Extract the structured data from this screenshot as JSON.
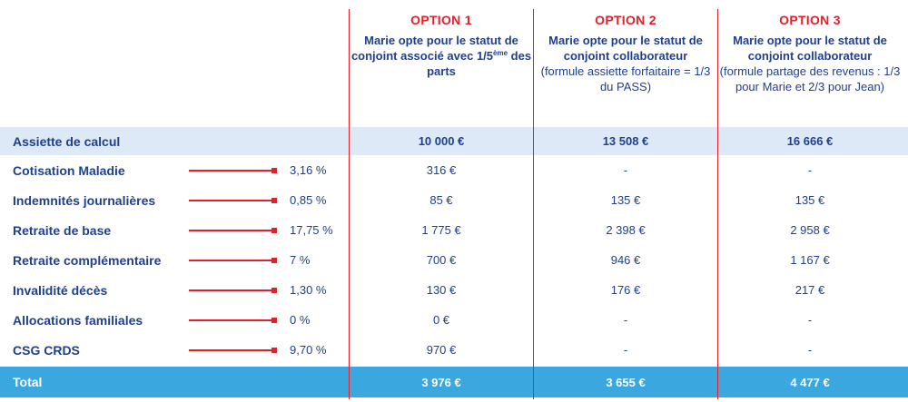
{
  "options": [
    {
      "title": "OPTION 1",
      "desc_before_sup": "Marie opte pour le statut de conjoint associé avec 1/5",
      "sup": "ème",
      "desc_after_sup": " des parts",
      "note": ""
    },
    {
      "title": "OPTION 2",
      "desc": "Marie opte pour le statut de conjoint collaborateur",
      "note": "(formule assiette forfaitaire = 1/3 du PASS)"
    },
    {
      "title": "OPTION 3",
      "desc": "Marie opte pour le statut de conjoint collaborateur",
      "note": "(formule partage des revenus : 1/3 pour Marie et 2/3 pour Jean)"
    }
  ],
  "assiette": {
    "label": "Assiette de calcul",
    "values": [
      "10 000 €",
      "13 508 €",
      "16 666 €"
    ]
  },
  "rows": [
    {
      "label": "Cotisation Maladie",
      "rate": "3,16 %",
      "values": [
        "316 €",
        "-",
        "-"
      ]
    },
    {
      "label": "Indemnités journalières",
      "rate": "0,85 %",
      "values": [
        "85 €",
        "135 €",
        "135 €"
      ]
    },
    {
      "label": "Retraite de base",
      "rate": "17,75 %",
      "values": [
        "1 775 €",
        "2 398 €",
        "2 958 €"
      ]
    },
    {
      "label": "Retraite complémentaire",
      "rate": "7 %",
      "values": [
        "700 €",
        "946 €",
        "1 167 €"
      ]
    },
    {
      "label": "Invalidité décès",
      "rate": "1,30 %",
      "values": [
        "130 €",
        "176 €",
        "217 €"
      ]
    },
    {
      "label": "Allocations familiales",
      "rate": "0 %",
      "values": [
        "0 €",
        "-",
        "-"
      ]
    },
    {
      "label": "CSG CRDS",
      "rate": "9,70 %",
      "values": [
        "970 €",
        "-",
        "-"
      ]
    }
  ],
  "total": {
    "label": "Total",
    "values": [
      "3 976 €",
      "3 655 €",
      "4 477 €"
    ]
  },
  "colors": {
    "accent_red": "#e2202a",
    "text_blue": "#1f3f8f",
    "assiette_band": "#dde9f6",
    "total_band": "#3aa7df"
  }
}
